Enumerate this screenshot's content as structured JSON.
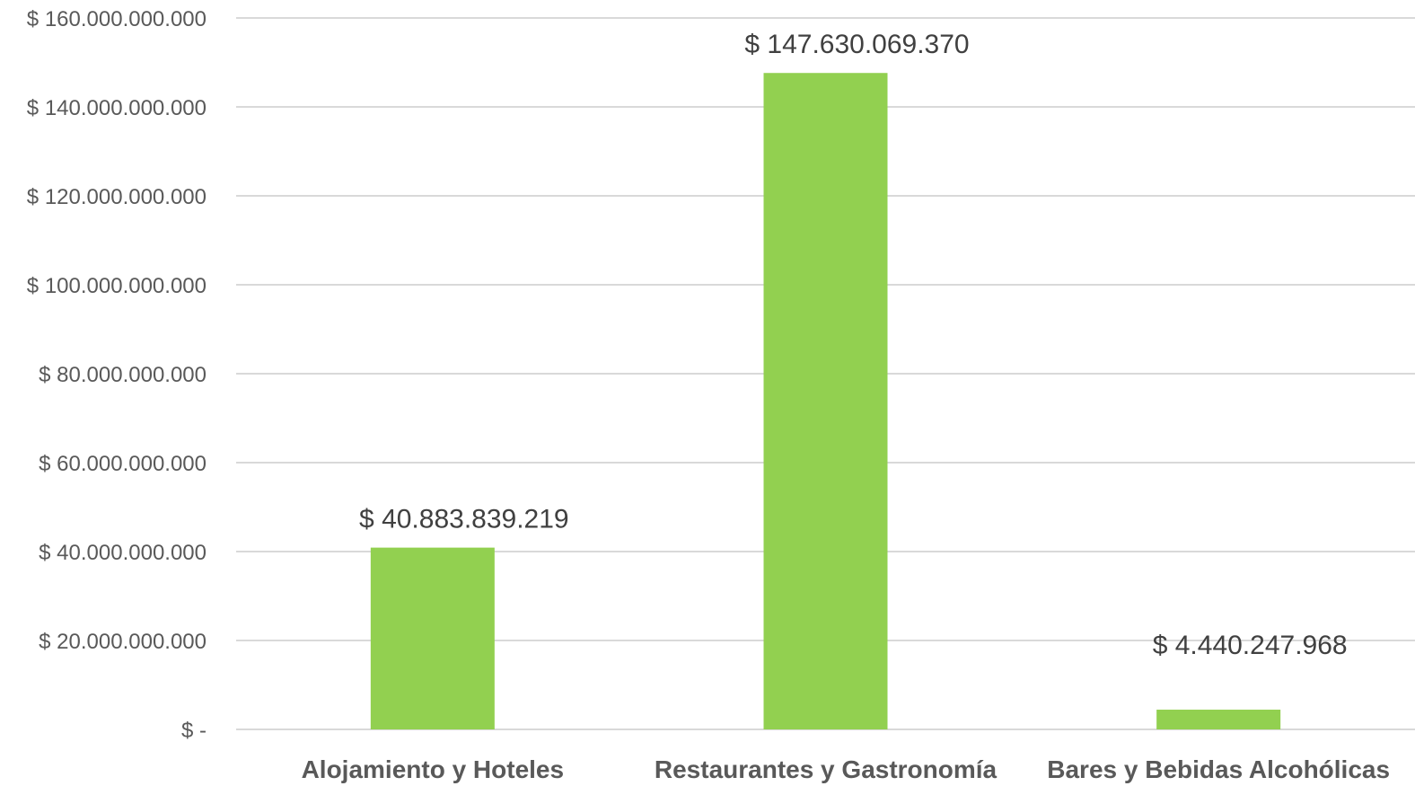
{
  "chart_data": {
    "type": "bar",
    "categories": [
      "Alojamiento y Hoteles",
      "Restaurantes y Gastronomía",
      "Bares y Bebidas Alcohólicas"
    ],
    "values": [
      40883839219,
      147630069370,
      4440247968
    ],
    "data_labels": [
      "$ 40.883.839.219",
      "$ 147.630.069.370",
      "$ 4.440.247.968"
    ],
    "ylim": [
      0,
      160000000000
    ],
    "yticks": [
      0,
      20000000000,
      40000000000,
      60000000000,
      80000000000,
      100000000000,
      120000000000,
      140000000000,
      160000000000
    ],
    "ytick_labels": [
      "$ -",
      "$ 20.000.000.000",
      "$ 40.000.000.000",
      "$ 60.000.000.000",
      "$ 80.000.000.000",
      "$ 100.000.000.000",
      "$ 120.000.000.000",
      "$ 140.000.000.000",
      "$ 160.000.000.000"
    ],
    "title": "",
    "xlabel": "",
    "ylabel": "",
    "grid": true,
    "legend": "none",
    "bar_color": "#92d050"
  }
}
